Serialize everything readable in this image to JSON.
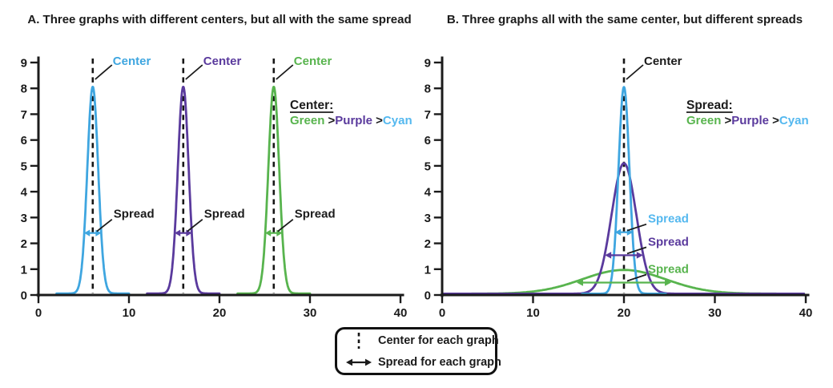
{
  "colors": {
    "cyan_curve": "#3fa6e0",
    "cyan_text": "#54b8ef",
    "purple": "#5a3a9d",
    "green": "#58b44e",
    "ink": "#1b1b1b"
  },
  "chart_data": [
    {
      "type": "line",
      "panel": "A",
      "title": "A. Three graphs with different centers, but all with the same spread",
      "xlim": [
        0,
        40
      ],
      "ylim": [
        0,
        9
      ],
      "xticks": [
        0,
        10,
        20,
        30,
        40
      ],
      "yticks": [
        0,
        1,
        2,
        3,
        4,
        5,
        6,
        7,
        8,
        9
      ],
      "grid": false,
      "legend_position": "none",
      "series": [
        {
          "name": "cyan",
          "color": "#3fa6e0",
          "center": 6,
          "peak": 8,
          "sigma": 0.6,
          "baseline": 0.06,
          "draw_range": [
            2,
            10
          ]
        },
        {
          "name": "purple",
          "color": "#5a3a9d",
          "center": 16,
          "peak": 8,
          "sigma": 0.6,
          "baseline": 0.06,
          "draw_range": [
            12,
            20
          ]
        },
        {
          "name": "green",
          "color": "#58b44e",
          "center": 26,
          "peak": 8,
          "sigma": 0.6,
          "baseline": 0.06,
          "draw_range": [
            22,
            30
          ]
        }
      ],
      "center_lines": [
        6,
        16,
        26
      ],
      "center_labels": [
        {
          "text": "Center",
          "color": "#3fa6e0",
          "center": 6
        },
        {
          "text": "Center",
          "color": "#5a3a9d",
          "center": 16
        },
        {
          "text": "Center",
          "color": "#58b44e",
          "center": 26
        }
      ],
      "spread_labels": [
        {
          "text": "Spread",
          "color": "#1b1b1b",
          "arrow_color": "#3fa6e0",
          "center": 6,
          "arrow_y": 2.4,
          "half_width": 0.95
        },
        {
          "text": "Spread",
          "color": "#1b1b1b",
          "arrow_color": "#5a3a9d",
          "center": 16,
          "arrow_y": 2.4,
          "half_width": 0.95
        },
        {
          "text": "Spread",
          "color": "#1b1b1b",
          "arrow_color": "#58b44e",
          "center": 26,
          "arrow_y": 2.4,
          "half_width": 0.95
        }
      ],
      "ranking": {
        "heading": "Center:",
        "parts": [
          {
            "text": "Green",
            "color": "#58b44e"
          },
          {
            "text": " >",
            "color": "#1b1b1b"
          },
          {
            "text": "Purple",
            "color": "#5a3a9d"
          },
          {
            "text": " >",
            "color": "#1b1b1b"
          },
          {
            "text": "Cyan",
            "color": "#54b8ef"
          }
        ]
      }
    },
    {
      "type": "line",
      "panel": "B",
      "title": "B. Three graphs all with the same center, but different spreads",
      "xlim": [
        0,
        40
      ],
      "ylim": [
        0,
        9
      ],
      "xticks": [
        0,
        10,
        20,
        30,
        40
      ],
      "yticks": [
        0,
        1,
        2,
        3,
        4,
        5,
        6,
        7,
        8,
        9
      ],
      "grid": false,
      "legend_position": "none",
      "series": [
        {
          "name": "green",
          "color": "#58b44e",
          "center": 20,
          "peak": 0.92,
          "sigma": 4.6,
          "baseline": 0.05,
          "draw_range": [
            0.2,
            39.8
          ]
        },
        {
          "name": "purple",
          "color": "#5a3a9d",
          "center": 20,
          "peak": 5.05,
          "sigma": 1.36,
          "baseline": 0.05,
          "draw_range": [
            0.2,
            39.8
          ]
        },
        {
          "name": "cyan",
          "color": "#3fa6e0",
          "center": 20,
          "peak": 8,
          "sigma": 0.6,
          "baseline": 0.05,
          "draw_range": [
            15.4,
            24.6
          ]
        }
      ],
      "center_lines": [
        20
      ],
      "center_labels": [
        {
          "text": "Center",
          "color": "#1b1b1b",
          "center": 20
        }
      ],
      "spread_labels": [
        {
          "text": "Spread",
          "color": "#54b8ef",
          "arrow_color": "#3fa6e0",
          "center": 20,
          "arrow_y": 2.43,
          "half_width": 1.0
        },
        {
          "text": "Spread",
          "color": "#5a3a9d",
          "arrow_color": "#5a3a9d",
          "center": 20,
          "arrow_y": 1.54,
          "half_width": 2.1
        },
        {
          "text": "Spread",
          "color": "#58b44e",
          "arrow_color": "#58b44e",
          "center": 20,
          "arrow_y": 0.48,
          "half_width": 5.2
        }
      ],
      "ranking": {
        "heading": "Spread:",
        "parts": [
          {
            "text": "Green",
            "color": "#58b44e"
          },
          {
            "text": " >",
            "color": "#1b1b1b"
          },
          {
            "text": "Purple",
            "color": "#5a3a9d"
          },
          {
            "text": " >",
            "color": "#1b1b1b"
          },
          {
            "text": "Cyan",
            "color": "#54b8ef"
          }
        ]
      }
    }
  ],
  "legend": {
    "items": [
      {
        "symbol": "dashed-line",
        "label": "Center for each graph"
      },
      {
        "symbol": "double-arrow",
        "label": "Spread for each graph"
      }
    ]
  }
}
